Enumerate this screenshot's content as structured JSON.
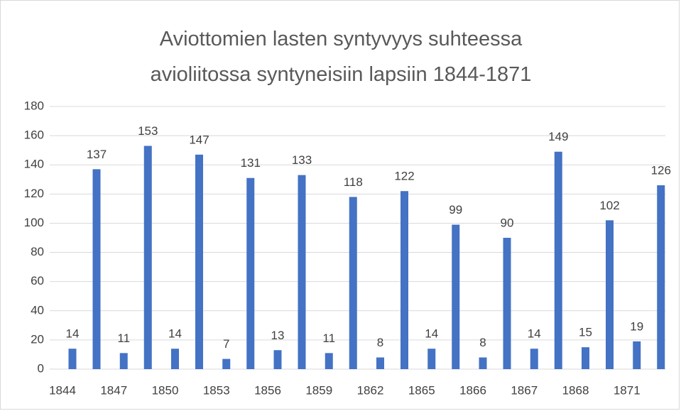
{
  "chart_data": {
    "type": "bar",
    "title": "Aviottomien lasten syntyvyys suhteessa avioliitossa syntyneisiin lapsiin 1844-1871",
    "categories": [
      "1844",
      "1847",
      "1850",
      "1853",
      "1856",
      "1859",
      "1862",
      "1865",
      "1866",
      "1867",
      "1868",
      "1871"
    ],
    "series": [
      {
        "color": "#4472c4",
        "values": [
          14,
          11,
          14,
          7,
          13,
          11,
          8,
          14,
          8,
          14,
          15,
          19
        ]
      },
      {
        "color": "#4472c4",
        "values": [
          137,
          153,
          147,
          131,
          133,
          118,
          122,
          99,
          90,
          149,
          102,
          126
        ]
      }
    ],
    "ylim": [
      0,
      180
    ],
    "yticks": [
      0,
      20,
      40,
      60,
      80,
      100,
      120,
      140,
      160,
      180
    ],
    "grid": true
  }
}
